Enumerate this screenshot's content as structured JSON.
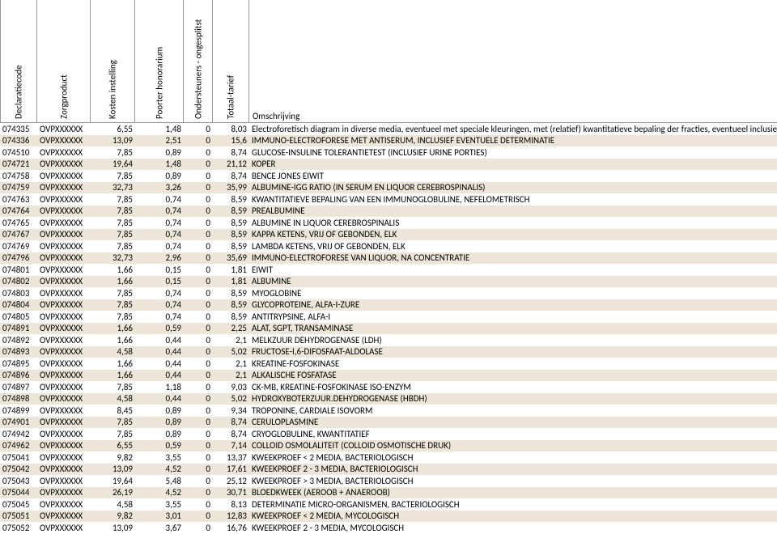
{
  "headers": {
    "code": "Declaratiecode",
    "prod": "Zorgproduct",
    "kost": "Kosten instelling",
    "poor": "Poorter honorarium",
    "onds": "Ondersteuners - ongesplitst",
    "tot": "Totaal-tarief",
    "oms": "Omschrijving"
  },
  "rows": [
    {
      "code": "074335",
      "prod": "OVPXXXXXX",
      "kost": "6,55",
      "poor": "1,48",
      "onds": "0",
      "tot": "8,03",
      "oms": "Electroforetisch diagram in diverse media, eventueel met speciale kleuringen, met (relatief) kwantitatieve bepaling der fracties, eventueel inclusief totaal eiwitb"
    },
    {
      "code": "074336",
      "prod": "OVPXXXXXX",
      "kost": "13,09",
      "poor": "2,51",
      "onds": "0",
      "tot": "15,6",
      "oms": "IMMUNO-ELECTROFORESE MET ANTISERUM, INCLUSIEF EVENTUELE DETERMINATIE"
    },
    {
      "code": "074510",
      "prod": "OVPXXXXXX",
      "kost": "7,85",
      "poor": "0,89",
      "onds": "0",
      "tot": "8,74",
      "oms": "GLUCOSE-INSULINE TOLERANTIETEST (INCLUSIEF URINE PORTIES)"
    },
    {
      "code": "074721",
      "prod": "OVPXXXXXX",
      "kost": "19,64",
      "poor": "1,48",
      "onds": "0",
      "tot": "21,12",
      "oms": "KOPER"
    },
    {
      "code": "074758",
      "prod": "OVPXXXXXX",
      "kost": "7,85",
      "poor": "0,89",
      "onds": "0",
      "tot": "8,74",
      "oms": "BENCE JONES EIWIT"
    },
    {
      "code": "074759",
      "prod": "OVPXXXXXX",
      "kost": "32,73",
      "poor": "3,26",
      "onds": "0",
      "tot": "35,99",
      "oms": "ALBUMINE-IGG RATIO (IN SERUM EN LIQUOR CEREBROSPINALIS)"
    },
    {
      "code": "074763",
      "prod": "OVPXXXXXX",
      "kost": "7,85",
      "poor": "0,74",
      "onds": "0",
      "tot": "8,59",
      "oms": "KWANTITATIEVE BEPALING VAN EEN IMMUNOGLOBULINE, NEFELOMETRISCH"
    },
    {
      "code": "074764",
      "prod": "OVPXXXXXX",
      "kost": "7,85",
      "poor": "0,74",
      "onds": "0",
      "tot": "8,59",
      "oms": "PREALBUMINE"
    },
    {
      "code": "074765",
      "prod": "OVPXXXXXX",
      "kost": "7,85",
      "poor": "0,74",
      "onds": "0",
      "tot": "8,59",
      "oms": "ALBUMINE IN LIQUOR CEREBROSPINALIS"
    },
    {
      "code": "074767",
      "prod": "OVPXXXXXX",
      "kost": "7,85",
      "poor": "0,74",
      "onds": "0",
      "tot": "8,59",
      "oms": "KAPPA KETENS, VRIJ OF GEBONDEN, ELK"
    },
    {
      "code": "074769",
      "prod": "OVPXXXXXX",
      "kost": "7,85",
      "poor": "0,74",
      "onds": "0",
      "tot": "8,59",
      "oms": "LAMBDA KETENS, VRIJ OF GEBONDEN, ELK"
    },
    {
      "code": "074796",
      "prod": "OVPXXXXXX",
      "kost": "32,73",
      "poor": "2,96",
      "onds": "0",
      "tot": "35,69",
      "oms": "IMMUNO-ELECTROFORESE VAN LIQUOR, NA CONCENTRATIE"
    },
    {
      "code": "074801",
      "prod": "OVPXXXXXX",
      "kost": "1,66",
      "poor": "0,15",
      "onds": "0",
      "tot": "1,81",
      "oms": "EIWIT"
    },
    {
      "code": "074802",
      "prod": "OVPXXXXXX",
      "kost": "1,66",
      "poor": "0,15",
      "onds": "0",
      "tot": "1,81",
      "oms": "ALBUMINE"
    },
    {
      "code": "074803",
      "prod": "OVPXXXXXX",
      "kost": "7,85",
      "poor": "0,74",
      "onds": "0",
      "tot": "8,59",
      "oms": "MYOGLOBINE"
    },
    {
      "code": "074804",
      "prod": "OVPXXXXXX",
      "kost": "7,85",
      "poor": "0,74",
      "onds": "0",
      "tot": "8,59",
      "oms": "GLYCOPROTEINE, ALFA-I-ZURE"
    },
    {
      "code": "074805",
      "prod": "OVPXXXXXX",
      "kost": "7,85",
      "poor": "0,74",
      "onds": "0",
      "tot": "8,59",
      "oms": "ANTITRYPSINE, ALFA-I"
    },
    {
      "code": "074891",
      "prod": "OVPXXXXXX",
      "kost": "1,66",
      "poor": "0,59",
      "onds": "0",
      "tot": "2,25",
      "oms": "ALAT, SGPT, TRANSAMINASE"
    },
    {
      "code": "074892",
      "prod": "OVPXXXXXX",
      "kost": "1,66",
      "poor": "0,44",
      "onds": "0",
      "tot": "2,1",
      "oms": "MELKZUUR DEHYDROGENASE (LDH)"
    },
    {
      "code": "074893",
      "prod": "OVPXXXXXX",
      "kost": "4,58",
      "poor": "0,44",
      "onds": "0",
      "tot": "5,02",
      "oms": "FRUCTOSE-I,6-DIFOSFAAT-ALDOLASE"
    },
    {
      "code": "074895",
      "prod": "OVPXXXXXX",
      "kost": "1,66",
      "poor": "0,44",
      "onds": "0",
      "tot": "2,1",
      "oms": "KREATINE-FOSFOKINASE"
    },
    {
      "code": "074896",
      "prod": "OVPXXXXXX",
      "kost": "1,66",
      "poor": "0,44",
      "onds": "0",
      "tot": "2,1",
      "oms": "ALKALISCHE FOSFATASE"
    },
    {
      "code": "074897",
      "prod": "OVPXXXXXX",
      "kost": "7,85",
      "poor": "1,18",
      "onds": "0",
      "tot": "9,03",
      "oms": "CK-MB, KREATINE-FOSFOKINASE ISO-ENZYM"
    },
    {
      "code": "074898",
      "prod": "OVPXXXXXX",
      "kost": "4,58",
      "poor": "0,44",
      "onds": "0",
      "tot": "5,02",
      "oms": "HYDROXYBOTERZUUR.DEHYDROGENASE (HBDH)"
    },
    {
      "code": "074899",
      "prod": "OVPXXXXXX",
      "kost": "8,45",
      "poor": "0,89",
      "onds": "0",
      "tot": "9,34",
      "oms": "TROPONINE, CARDIALE ISOVORM"
    },
    {
      "code": "074901",
      "prod": "OVPXXXXXX",
      "kost": "7,85",
      "poor": "0,89",
      "onds": "0",
      "tot": "8,74",
      "oms": "CERULOPLASMINE"
    },
    {
      "code": "074942",
      "prod": "OVPXXXXXX",
      "kost": "7,85",
      "poor": "0,89",
      "onds": "0",
      "tot": "8,74",
      "oms": "CRYOGLOBULINE, KWANTITATIEF"
    },
    {
      "code": "074962",
      "prod": "OVPXXXXXX",
      "kost": "6,55",
      "poor": "0,59",
      "onds": "0",
      "tot": "7,14",
      "oms": "COLLOID OSMOLALITEIT (COLLOID OSMOTISCHE DRUK)"
    },
    {
      "code": "075041",
      "prod": "OVPXXXXXX",
      "kost": "9,82",
      "poor": "3,55",
      "onds": "0",
      "tot": "13,37",
      "oms": "KWEEKPROEF < 2 MEDIA, BACTERIOLOGISCH"
    },
    {
      "code": "075042",
      "prod": "OVPXXXXXX",
      "kost": "13,09",
      "poor": "4,52",
      "onds": "0",
      "tot": "17,61",
      "oms": "KWEEKPROEF 2 - 3 MEDIA, BACTERIOLOGISCH"
    },
    {
      "code": "075043",
      "prod": "OVPXXXXXX",
      "kost": "19,64",
      "poor": "5,48",
      "onds": "0",
      "tot": "25,12",
      "oms": "KWEEKPROEF > 3 MEDIA, BACTERIOLOGISCH"
    },
    {
      "code": "075044",
      "prod": "OVPXXXXXX",
      "kost": "26,19",
      "poor": "4,52",
      "onds": "0",
      "tot": "30,71",
      "oms": "BLOEDKWEEK (AEROOB + ANAEROOB)"
    },
    {
      "code": "075045",
      "prod": "OVPXXXXXX",
      "kost": "4,58",
      "poor": "3,55",
      "onds": "0",
      "tot": "8,13",
      "oms": "DETERMINATIE MICRO-ORGANISMEN, BACTERIOLOGISCH"
    },
    {
      "code": "075051",
      "prod": "OVPXXXXXX",
      "kost": "9,82",
      "poor": "3,01",
      "onds": "0",
      "tot": "12,83",
      "oms": "KWEEKPROEF < 2 MEDIA, MYCOLOGISCH"
    },
    {
      "code": "075052",
      "prod": "OVPXXXXXX",
      "kost": "13,09",
      "poor": "3,67",
      "onds": "0",
      "tot": "16,76",
      "oms": "KWEEKPROEF 2 - 3 MEDIA, MYCOLOGISCH"
    }
  ],
  "alt_color": "#ece5d8"
}
